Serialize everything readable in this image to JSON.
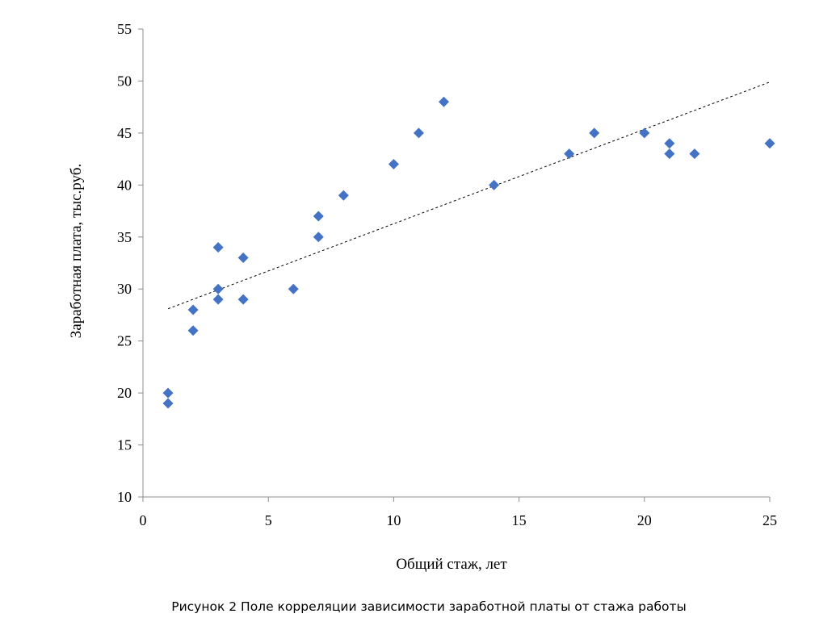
{
  "caption": "Рисунок 2 Поле корреляции зависимости заработной платы от стажа работы",
  "chart_data": {
    "type": "scatter",
    "title": "",
    "xlabel": "Общий стаж, лет",
    "ylabel": "Заработная плата, тыс.руб.",
    "xlim": [
      0,
      25
    ],
    "ylim": [
      10,
      55
    ],
    "xticks": [
      0,
      5,
      10,
      15,
      20,
      25
    ],
    "yticks": [
      10,
      15,
      20,
      25,
      30,
      35,
      40,
      45,
      50,
      55
    ],
    "grid": false,
    "legend": "none",
    "marker": "diamond",
    "marker_color": "#4472C4",
    "points": [
      {
        "x": 1,
        "y": 20
      },
      {
        "x": 1,
        "y": 19
      },
      {
        "x": 2,
        "y": 28
      },
      {
        "x": 2,
        "y": 26
      },
      {
        "x": 3,
        "y": 34
      },
      {
        "x": 3,
        "y": 30
      },
      {
        "x": 3,
        "y": 29
      },
      {
        "x": 4,
        "y": 33
      },
      {
        "x": 4,
        "y": 29
      },
      {
        "x": 6,
        "y": 30
      },
      {
        "x": 7,
        "y": 37
      },
      {
        "x": 7,
        "y": 35
      },
      {
        "x": 8,
        "y": 39
      },
      {
        "x": 10,
        "y": 42
      },
      {
        "x": 11,
        "y": 45
      },
      {
        "x": 12,
        "y": 48
      },
      {
        "x": 14,
        "y": 40
      },
      {
        "x": 17,
        "y": 43
      },
      {
        "x": 18,
        "y": 45
      },
      {
        "x": 20,
        "y": 45
      },
      {
        "x": 21,
        "y": 44
      },
      {
        "x": 21,
        "y": 43
      },
      {
        "x": 22,
        "y": 43
      },
      {
        "x": 25,
        "y": 44
      }
    ],
    "trendline": {
      "type": "linear",
      "style": "dashed",
      "color": "#000000",
      "from": {
        "x": 1,
        "y": 28.1
      },
      "to": {
        "x": 25,
        "y": 49.9
      }
    }
  }
}
